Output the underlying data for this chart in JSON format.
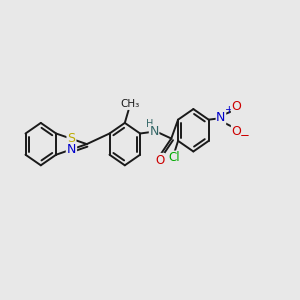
{
  "bg_color": "#e8e8e8",
  "bond_color": "#1a1a1a",
  "bond_width": 1.4,
  "font_size": 8.5,
  "atom_colors": {
    "S": "#bbaa00",
    "N_blue": "#0000cc",
    "O": "#cc0000",
    "Cl": "#00aa00",
    "NH": "#336666",
    "C": "#1a1a1a"
  },
  "xlim": [
    0,
    12
  ],
  "ylim": [
    0,
    10
  ]
}
